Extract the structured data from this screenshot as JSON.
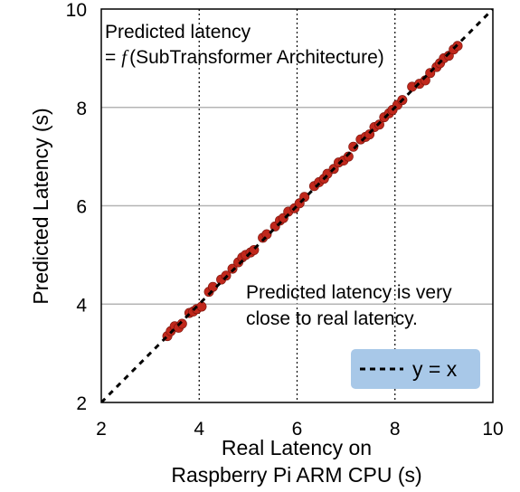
{
  "chart_data": {
    "type": "scatter",
    "xlabel_line1": "Real Latency on",
    "xlabel_line2": "Raspberry Pi ARM CPU (s)",
    "ylabel": "Predicted Latency (s)",
    "xlim": [
      2,
      10
    ],
    "ylim": [
      2,
      10
    ],
    "xticks": [
      2,
      4,
      6,
      8,
      10
    ],
    "yticks": [
      2,
      4,
      6,
      8,
      10
    ],
    "x_grid": "dotted vertical lines at 4, 6, 8",
    "y_grid": "solid horizontal lines at 4, 6, 8",
    "point_color": "#c0281c",
    "reference_line_color": "#000000",
    "legend_bg_color": "#a8c8e8",
    "annotation_top_line1": "Predicted latency",
    "annotation_top_line2_prefix": "=",
    "annotation_top_line2_func": "f",
    "annotation_top_line2_rest": "(SubTransformer Architecture)",
    "annotation_mid_line1": "Predicted latency is very",
    "annotation_mid_line2": "close to real latency.",
    "legend": {
      "label": "y = x",
      "position": "bottom-right"
    },
    "series": [
      {
        "points": [
          [
            3.35,
            3.35
          ],
          [
            3.42,
            3.45
          ],
          [
            3.5,
            3.55
          ],
          [
            3.58,
            3.52
          ],
          [
            3.65,
            3.6
          ],
          [
            3.8,
            3.82
          ],
          [
            3.88,
            3.85
          ],
          [
            3.95,
            3.9
          ],
          [
            4.05,
            3.95
          ],
          [
            4.2,
            4.25
          ],
          [
            4.28,
            4.35
          ],
          [
            4.45,
            4.5
          ],
          [
            4.55,
            4.58
          ],
          [
            4.68,
            4.72
          ],
          [
            4.8,
            4.85
          ],
          [
            4.88,
            4.95
          ],
          [
            4.95,
            5.0
          ],
          [
            5.05,
            5.05
          ],
          [
            5.12,
            5.1
          ],
          [
            5.3,
            5.35
          ],
          [
            5.38,
            5.42
          ],
          [
            5.55,
            5.58
          ],
          [
            5.65,
            5.7
          ],
          [
            5.72,
            5.75
          ],
          [
            5.82,
            5.88
          ],
          [
            5.95,
            5.95
          ],
          [
            6.05,
            6.05
          ],
          [
            6.15,
            6.18
          ],
          [
            6.35,
            6.4
          ],
          [
            6.45,
            6.48
          ],
          [
            6.55,
            6.55
          ],
          [
            6.62,
            6.65
          ],
          [
            6.75,
            6.75
          ],
          [
            6.85,
            6.88
          ],
          [
            6.95,
            6.92
          ],
          [
            7.05,
            7.0
          ],
          [
            7.15,
            7.2
          ],
          [
            7.3,
            7.35
          ],
          [
            7.4,
            7.4
          ],
          [
            7.48,
            7.45
          ],
          [
            7.58,
            7.6
          ],
          [
            7.68,
            7.65
          ],
          [
            7.78,
            7.8
          ],
          [
            7.88,
            7.88
          ],
          [
            7.95,
            7.95
          ],
          [
            8.05,
            8.05
          ],
          [
            8.15,
            8.15
          ],
          [
            8.35,
            8.42
          ],
          [
            8.5,
            8.48
          ],
          [
            8.62,
            8.55
          ],
          [
            8.72,
            8.7
          ],
          [
            8.85,
            8.82
          ],
          [
            8.92,
            8.9
          ],
          [
            9.0,
            9.0
          ],
          [
            9.1,
            9.05
          ],
          [
            9.2,
            9.18
          ],
          [
            9.28,
            9.25
          ]
        ]
      }
    ]
  }
}
